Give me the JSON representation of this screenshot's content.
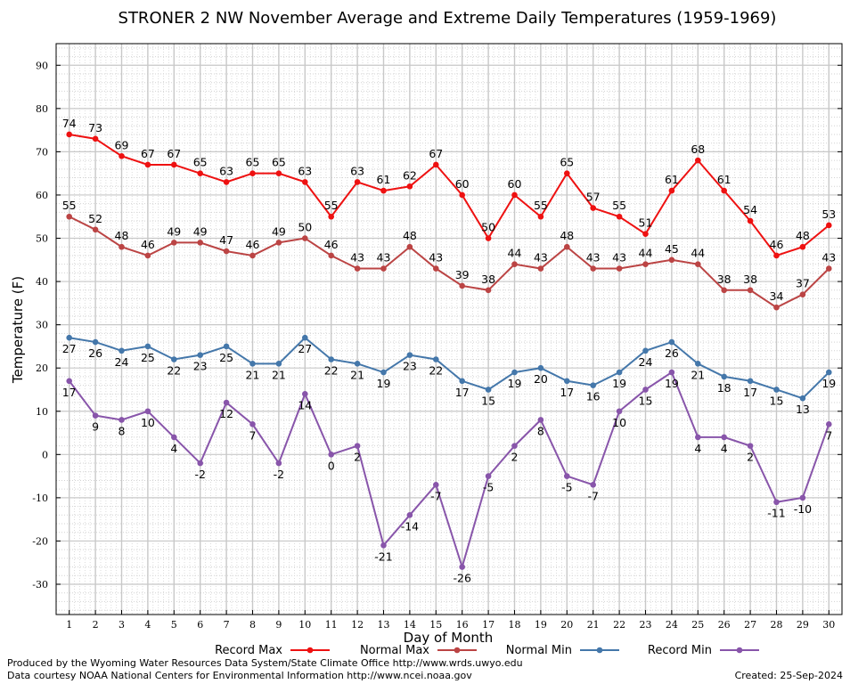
{
  "chart_data": {
    "type": "line",
    "title": "STRONER 2 NW November Average and Extreme Daily Temperatures (1959-1969)",
    "xlabel": "Day of Month",
    "ylabel": "Temperature (F)",
    "x": [
      1,
      2,
      3,
      4,
      5,
      6,
      7,
      8,
      9,
      10,
      11,
      12,
      13,
      14,
      15,
      16,
      17,
      18,
      19,
      20,
      21,
      22,
      23,
      24,
      25,
      26,
      27,
      28,
      29,
      30
    ],
    "xlim": [
      0.5,
      30.5
    ],
    "ylim": [
      -37,
      95
    ],
    "yticks": [
      -30,
      -20,
      -10,
      0,
      10,
      20,
      30,
      40,
      50,
      60,
      70,
      80,
      90
    ],
    "grid": true,
    "legend_placement": "bottom",
    "series": [
      {
        "name": "Record Max",
        "color": "#ee1111",
        "label_pos": "above",
        "values": [
          74,
          73,
          69,
          67,
          67,
          65,
          63,
          65,
          65,
          63,
          55,
          63,
          61,
          62,
          67,
          60,
          50,
          60,
          55,
          65,
          57,
          55,
          51,
          61,
          68,
          61,
          54,
          46,
          48,
          53
        ]
      },
      {
        "name": "Normal Max",
        "color": "#bb4444",
        "label_pos": "above",
        "values": [
          55,
          52,
          48,
          46,
          49,
          49,
          47,
          46,
          49,
          50,
          46,
          43,
          43,
          48,
          43,
          39,
          38,
          44,
          43,
          48,
          43,
          43,
          44,
          45,
          44,
          38,
          38,
          34,
          37,
          43
        ]
      },
      {
        "name": "Normal Min",
        "color": "#4477aa",
        "label_pos": "below",
        "values": [
          27,
          26,
          24,
          25,
          22,
          23,
          25,
          21,
          21,
          27,
          22,
          21,
          19,
          23,
          22,
          17,
          15,
          19,
          20,
          17,
          16,
          19,
          24,
          26,
          21,
          18,
          17,
          15,
          13,
          19
        ]
      },
      {
        "name": "Record Min",
        "color": "#8855aa",
        "label_pos": "below",
        "values": [
          17,
          9,
          8,
          10,
          4,
          -2,
          12,
          7,
          -2,
          14,
          0,
          2,
          -21,
          -14,
          -7,
          -26,
          -5,
          2,
          8,
          -5,
          -7,
          10,
          15,
          19,
          4,
          4,
          2,
          -11,
          -10,
          7
        ]
      }
    ]
  },
  "footer": {
    "produced_by": "Produced by the Wyoming Water Resources Data System/State Climate Office http://www.wrds.uwyo.edu",
    "courtesy": "Data courtesy NOAA National Centers for Environmental Information http://www.ncei.noaa.gov",
    "created": "Created:  25-Sep-2024"
  }
}
